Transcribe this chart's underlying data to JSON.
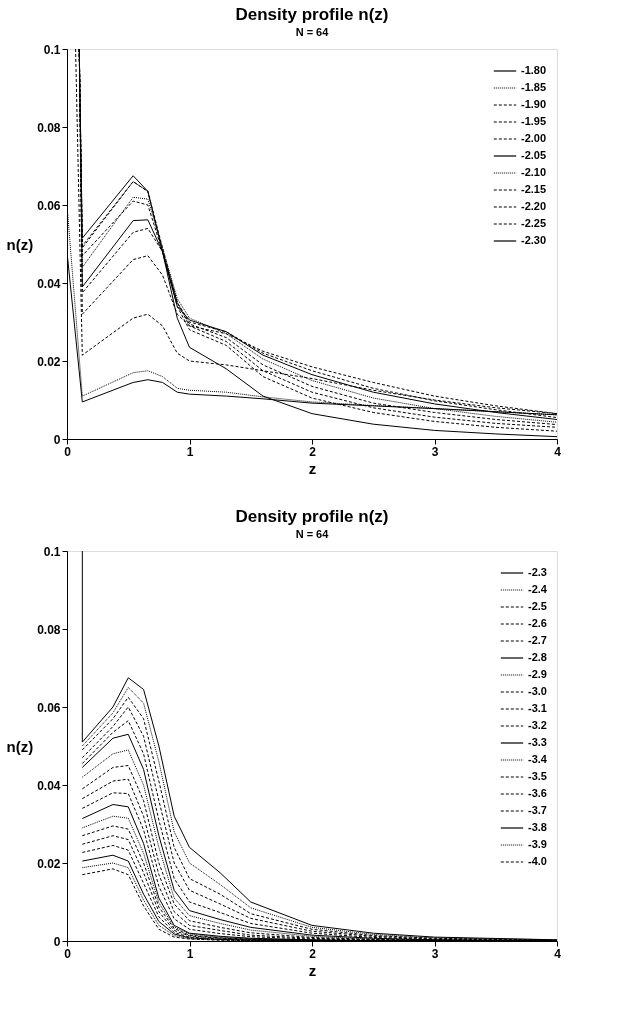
{
  "chart_data": [
    {
      "type": "line",
      "title": "Density profile n(z)",
      "subtitle": "N = 64",
      "xlabel": "z",
      "ylabel": "n(z)",
      "xlim": [
        0,
        4
      ],
      "ylim": [
        0,
        0.1
      ],
      "xticks": [
        0,
        1,
        2,
        3,
        4
      ],
      "yticks": [
        0,
        0.02,
        0.04,
        0.06,
        0.08,
        0.1
      ],
      "grid": false,
      "legend": "top right",
      "marker": "none",
      "x": [
        0,
        0.125,
        0.54,
        0.66,
        0.78,
        0.9,
        1.0,
        1.3,
        1.6,
        2,
        2.5,
        3,
        3.5,
        4
      ],
      "series": [
        {
          "name": "-1.80",
          "color": "#000000",
          "line_style": "solid",
          "values": [
            0.048,
            0.0095,
            0.0145,
            0.0152,
            0.0145,
            0.012,
            0.0115,
            0.011,
            0.0103,
            0.0092,
            0.0085,
            0.0078,
            0.007,
            0.0062
          ]
        },
        {
          "name": "-1.85",
          "color": "#000000",
          "line_style": "dotted",
          "values": [
            0.06,
            0.011,
            0.017,
            0.0175,
            0.016,
            0.013,
            0.0125,
            0.012,
            0.0108,
            0.0095,
            0.0086,
            0.0078,
            0.007,
            0.0062
          ]
        },
        {
          "name": "-1.90",
          "color": "#000000",
          "line_style": "dashed",
          "x": [
            0.07,
            0.125,
            0.54,
            0.66,
            0.78,
            0.9,
            1.0,
            1.3,
            1.6,
            2,
            2.5,
            3,
            3.5,
            4
          ],
          "values": [
            0.1,
            0.0215,
            0.031,
            0.032,
            0.029,
            0.022,
            0.02,
            0.019,
            0.0175,
            0.0155,
            0.0125,
            0.01,
            0.008,
            0.0065
          ]
        },
        {
          "name": "-1.95",
          "color": "#000000",
          "line_style": "dashed",
          "x": [
            0.1,
            0.125,
            0.54,
            0.66,
            0.78,
            0.9,
            1.0,
            1.3,
            1.6,
            2,
            2.5,
            3,
            3.5,
            4
          ],
          "values": [
            0.1,
            0.032,
            0.046,
            0.047,
            0.042,
            0.032,
            0.029,
            0.027,
            0.0225,
            0.0185,
            0.0145,
            0.011,
            0.0085,
            0.0065
          ]
        },
        {
          "name": "-2.00",
          "color": "#000000",
          "line_style": "dashed",
          "x": [
            0.1,
            0.125,
            0.54,
            0.66,
            0.78,
            0.9,
            1.0,
            1.3,
            1.6,
            2,
            2.5,
            3,
            3.5,
            4
          ],
          "values": [
            0.1,
            0.0375,
            0.053,
            0.054,
            0.048,
            0.035,
            0.03,
            0.0275,
            0.022,
            0.0175,
            0.013,
            0.0098,
            0.0075,
            0.0055
          ]
        },
        {
          "name": "-2.05",
          "color": "#000000",
          "line_style": "solid",
          "x": [
            0.1,
            0.125,
            0.54,
            0.66,
            0.78,
            0.9,
            1.0,
            1.3,
            1.6,
            2,
            2.5,
            3,
            3.5,
            4
          ],
          "values": [
            0.1,
            0.039,
            0.056,
            0.0562,
            0.048,
            0.034,
            0.0305,
            0.0275,
            0.0215,
            0.0165,
            0.012,
            0.009,
            0.0068,
            0.005
          ]
        },
        {
          "name": "-2.10",
          "color": "#000000",
          "line_style": "dotted",
          "x": [
            0.1,
            0.125,
            0.54,
            0.66,
            0.78,
            0.9,
            1.0,
            1.3,
            1.6,
            2,
            2.5,
            3,
            3.5,
            4
          ],
          "values": [
            0.1,
            0.044,
            0.062,
            0.0615,
            0.049,
            0.036,
            0.031,
            0.027,
            0.0205,
            0.015,
            0.0105,
            0.0078,
            0.0058,
            0.0043
          ]
        },
        {
          "name": "-2.15",
          "color": "#000000",
          "line_style": "dashed",
          "x": [
            0.1,
            0.125,
            0.54,
            0.66,
            0.78,
            0.9,
            1.0,
            1.3,
            1.6,
            2,
            2.5,
            3,
            3.5,
            4
          ],
          "values": [
            0.1,
            0.047,
            0.061,
            0.06,
            0.048,
            0.035,
            0.0295,
            0.026,
            0.019,
            0.0135,
            0.0092,
            0.0068,
            0.005,
            0.0037
          ]
        },
        {
          "name": "-2.20",
          "color": "#000000",
          "line_style": "dashed",
          "x": [
            0.1,
            0.125,
            0.54,
            0.66,
            0.78,
            0.9,
            1.0,
            1.3,
            1.6,
            2,
            2.5,
            3,
            3.5,
            4
          ],
          "values": [
            0.1,
            0.049,
            0.066,
            0.0635,
            0.049,
            0.035,
            0.029,
            0.025,
            0.0175,
            0.012,
            0.008,
            0.0056,
            0.004,
            0.003
          ]
        },
        {
          "name": "-2.25",
          "color": "#000000",
          "line_style": "dashed",
          "x": [
            0.1,
            0.125,
            0.54,
            0.66,
            0.78,
            0.9,
            1.0,
            1.3,
            1.6,
            2,
            2.5,
            3,
            3.5,
            4
          ],
          "values": [
            0.1,
            0.0495,
            0.066,
            0.0635,
            0.048,
            0.034,
            0.028,
            0.024,
            0.016,
            0.0105,
            0.0068,
            0.0045,
            0.003,
            0.002
          ]
        },
        {
          "name": "-2.30",
          "color": "#000000",
          "line_style": "solid",
          "x": [
            0.1,
            0.125,
            0.54,
            0.66,
            0.78,
            0.9,
            1.0,
            1.3,
            1.6,
            2,
            2.5,
            3,
            3.5,
            4
          ],
          "values": [
            0.1,
            0.0515,
            0.0675,
            0.0635,
            0.048,
            0.031,
            0.0235,
            0.018,
            0.011,
            0.0065,
            0.0038,
            0.0022,
            0.0013,
            0.0006
          ]
        }
      ]
    },
    {
      "type": "line",
      "title": "Density profile n(z)",
      "subtitle": "N = 64",
      "xlabel": "z",
      "ylabel": "n(z)",
      "xlim": [
        0,
        4
      ],
      "ylim": [
        0,
        0.1
      ],
      "xticks": [
        0,
        1,
        2,
        3,
        4
      ],
      "yticks": [
        0,
        0.02,
        0.04,
        0.06,
        0.08,
        0.1
      ],
      "grid": false,
      "legend": "top right",
      "marker": "none",
      "x": [
        0.125,
        0.375,
        0.5,
        0.625,
        0.75,
        0.875,
        1.0,
        1.25,
        1.5,
        2,
        2.5,
        3,
        4
      ],
      "series": [
        {
          "name": "-2.3",
          "color": "#000000",
          "line_style": "solid",
          "x": [
            0.125,
            0.125,
            0.375,
            0.5,
            0.625,
            0.75,
            0.875,
            1.0,
            1.25,
            1.5,
            2,
            2.5,
            3,
            4
          ],
          "values": [
            0.1,
            0.051,
            0.06,
            0.0675,
            0.0645,
            0.05,
            0.032,
            0.024,
            0.0175,
            0.01,
            0.004,
            0.002,
            0.001,
            0.0003
          ]
        },
        {
          "name": "-2.4",
          "color": "#000000",
          "line_style": "dotted",
          "values": [
            0.05,
            0.0585,
            0.065,
            0.061,
            0.046,
            0.028,
            0.02,
            0.0145,
            0.0085,
            0.0035,
            0.0017,
            0.0008,
            0.0003
          ]
        },
        {
          "name": "-2.5",
          "color": "#000000",
          "line_style": "dashed",
          "values": [
            0.049,
            0.057,
            0.0625,
            0.057,
            0.041,
            0.024,
            0.016,
            0.012,
            0.007,
            0.003,
            0.0014,
            0.0007,
            0.0002
          ]
        },
        {
          "name": "-2.6",
          "color": "#000000",
          "line_style": "dashed",
          "values": [
            0.047,
            0.055,
            0.06,
            0.0525,
            0.036,
            0.02,
            0.013,
            0.0095,
            0.0058,
            0.0025,
            0.0012,
            0.0005,
            0.0002
          ]
        },
        {
          "name": "-2.7",
          "color": "#000000",
          "line_style": "dashed",
          "values": [
            0.0455,
            0.0535,
            0.0565,
            0.048,
            0.031,
            0.016,
            0.01,
            0.0073,
            0.0045,
            0.002,
            0.0009,
            0.0004,
            0.0001
          ]
        },
        {
          "name": "-2.8",
          "color": "#000000",
          "line_style": "solid",
          "values": [
            0.0445,
            0.052,
            0.053,
            0.044,
            0.027,
            0.013,
            0.0078,
            0.0055,
            0.0035,
            0.0015,
            0.0007,
            0.0003,
            0.0001
          ]
        },
        {
          "name": "-2.9",
          "color": "#000000",
          "line_style": "dotted",
          "values": [
            0.042,
            0.048,
            0.049,
            0.04,
            0.024,
            0.011,
            0.0065,
            0.0045,
            0.0028,
            0.0012,
            0.0005,
            0.0002,
            0.0001
          ]
        },
        {
          "name": "-3.0",
          "color": "#000000",
          "line_style": "dashed",
          "values": [
            0.039,
            0.0445,
            0.045,
            0.036,
            0.02,
            0.0095,
            0.0052,
            0.0035,
            0.0021,
            0.0009,
            0.0004,
            0.0002,
            0
          ]
        },
        {
          "name": "-3.1",
          "color": "#000000",
          "line_style": "dashed",
          "values": [
            0.0365,
            0.041,
            0.0415,
            0.032,
            0.017,
            0.0075,
            0.004,
            0.0027,
            0.0015,
            0.0007,
            0.0003,
            0.0001,
            0
          ]
        },
        {
          "name": "-3.2",
          "color": "#000000",
          "line_style": "dashed",
          "values": [
            0.034,
            0.038,
            0.0378,
            0.0285,
            0.014,
            0.0057,
            0.003,
            0.0019,
            0.0011,
            0.0005,
            0.0002,
            0.0001,
            0
          ]
        },
        {
          "name": "-3.3",
          "color": "#000000",
          "line_style": "solid",
          "values": [
            0.0314,
            0.035,
            0.0344,
            0.025,
            0.011,
            0.004,
            0.002,
            0.0012,
            0.0007,
            0.0003,
            0.0001,
            0,
            0
          ]
        },
        {
          "name": "-3.4",
          "color": "#000000",
          "line_style": "dotted",
          "values": [
            0.029,
            0.032,
            0.0315,
            0.0225,
            0.0098,
            0.0036,
            0.0018,
            0.001,
            0.0006,
            0.0002,
            0.0001,
            0,
            0
          ]
        },
        {
          "name": "-3.5",
          "color": "#000000",
          "line_style": "dashed",
          "values": [
            0.027,
            0.0295,
            0.0287,
            0.02,
            0.0087,
            0.0032,
            0.0015,
            0.0008,
            0.0005,
            0.0002,
            0.0001,
            0,
            0
          ]
        },
        {
          "name": "-3.6",
          "color": "#000000",
          "line_style": "dashed",
          "values": [
            0.0248,
            0.027,
            0.026,
            0.0175,
            0.0075,
            0.0027,
            0.0013,
            0.0007,
            0.0004,
            0.0002,
            0,
            0,
            0
          ]
        },
        {
          "name": "-3.7",
          "color": "#000000",
          "line_style": "dashed",
          "values": [
            0.0227,
            0.0245,
            0.0233,
            0.0148,
            0.0062,
            0.0022,
            0.001,
            0.0005,
            0.0003,
            0.0001,
            0,
            0,
            0
          ]
        },
        {
          "name": "-3.8",
          "color": "#000000",
          "line_style": "solid",
          "values": [
            0.0205,
            0.022,
            0.0205,
            0.012,
            0.005,
            0.0018,
            0.0008,
            0.0004,
            0.0002,
            0.0001,
            0,
            0,
            0
          ]
        },
        {
          "name": "-3.9",
          "color": "#000000",
          "line_style": "dotted",
          "values": [
            0.0188,
            0.02,
            0.0188,
            0.0105,
            0.004,
            0.0014,
            0.0006,
            0.0003,
            0.0001,
            0,
            0,
            0,
            0
          ]
        },
        {
          "name": "-4.0",
          "color": "#000000",
          "line_style": "dashed",
          "values": [
            0.017,
            0.0185,
            0.017,
            0.009,
            0.003,
            0.001,
            0.0005,
            0.0002,
            0.0001,
            0,
            0,
            0,
            0
          ]
        }
      ]
    }
  ]
}
